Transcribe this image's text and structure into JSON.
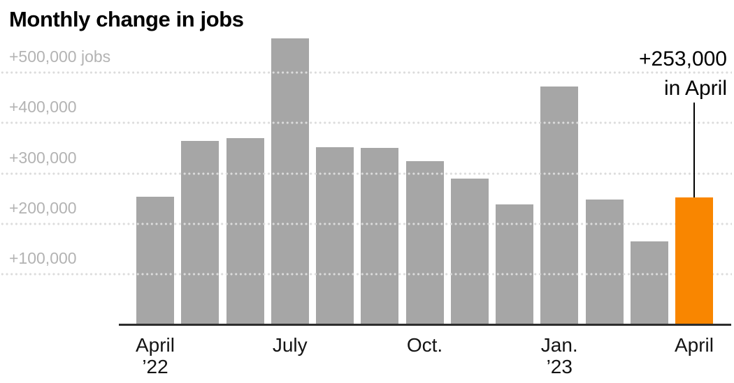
{
  "chart_data": {
    "type": "bar",
    "title": "Monthly change in jobs",
    "x": [
      "2022-04",
      "2022-05",
      "2022-06",
      "2022-07",
      "2022-08",
      "2022-09",
      "2022-10",
      "2022-11",
      "2022-12",
      "2023-01",
      "2023-02",
      "2023-03",
      "2023-04"
    ],
    "values": [
      254000,
      364000,
      370000,
      568000,
      352000,
      350000,
      324000,
      290000,
      239000,
      472000,
      248000,
      165000,
      253000
    ],
    "highlight_index": 12,
    "ylim": [
      0,
      580000
    ],
    "grid": "dotted-horizontal",
    "legend": "none",
    "yticks": [
      {
        "value": 500000,
        "label": "+500,000 jobs"
      },
      {
        "value": 400000,
        "label": "+400,000"
      },
      {
        "value": 300000,
        "label": "+300,000"
      },
      {
        "value": 200000,
        "label": "+200,000"
      },
      {
        "value": 100000,
        "label": "+100,000"
      }
    ],
    "xticks": [
      {
        "index": 0,
        "lines": [
          "April",
          "’22"
        ]
      },
      {
        "index": 3,
        "lines": [
          "July"
        ]
      },
      {
        "index": 6,
        "lines": [
          "Oct."
        ]
      },
      {
        "index": 9,
        "lines": [
          "Jan.",
          "’23"
        ]
      },
      {
        "index": 12,
        "lines": [
          "April"
        ]
      }
    ],
    "annotation": {
      "lines": [
        "+253,000",
        "in April"
      ],
      "target_index": 12
    }
  },
  "colors": {
    "bar": "#a6a6a6",
    "highlight": "#f98600",
    "gridline_dot": "#dcdcdc",
    "axis": "#2d2d2d",
    "ytick_label": "#b3b3b3",
    "xtick_label": "#141414",
    "annotation": "#000000",
    "background": "#ffffff"
  }
}
